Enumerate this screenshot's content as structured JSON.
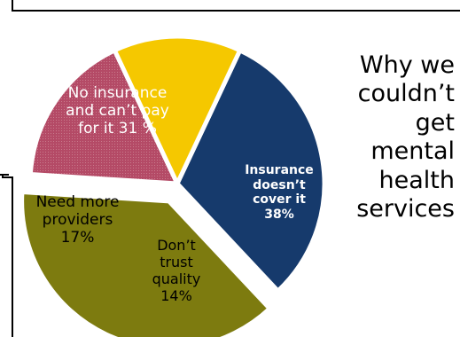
{
  "chart_data": {
    "type": "pie",
    "title": "Why we couldn’t get mental health services",
    "slices": [
      {
        "label": "No insurance and can’t pay for it   31 %",
        "value": 31,
        "color": "#163a6c"
      },
      {
        "label": "Insurance doesn’t cover it 38%",
        "value": 38,
        "color": "#7d7b0f"
      },
      {
        "label": "Need more providers 17%",
        "value": 17,
        "color": "#b44a66"
      },
      {
        "label": "Don’t trust quality 14%",
        "value": 14,
        "color": "#f5c800"
      }
    ],
    "exploded": "Insurance doesn’t cover it 38%"
  },
  "display": {
    "title_lines": "Why we\ncouldn’t\nget\nmental\nhealth\nservices",
    "label_lines": [
      "No insurance\nand can’t pay\nfor it   31 %",
      "Insurance\ndoesn’t\ncover it\n38%",
      "Need more\nproviders\n17%",
      "Don’t\ntrust\nquality\n14%"
    ]
  }
}
